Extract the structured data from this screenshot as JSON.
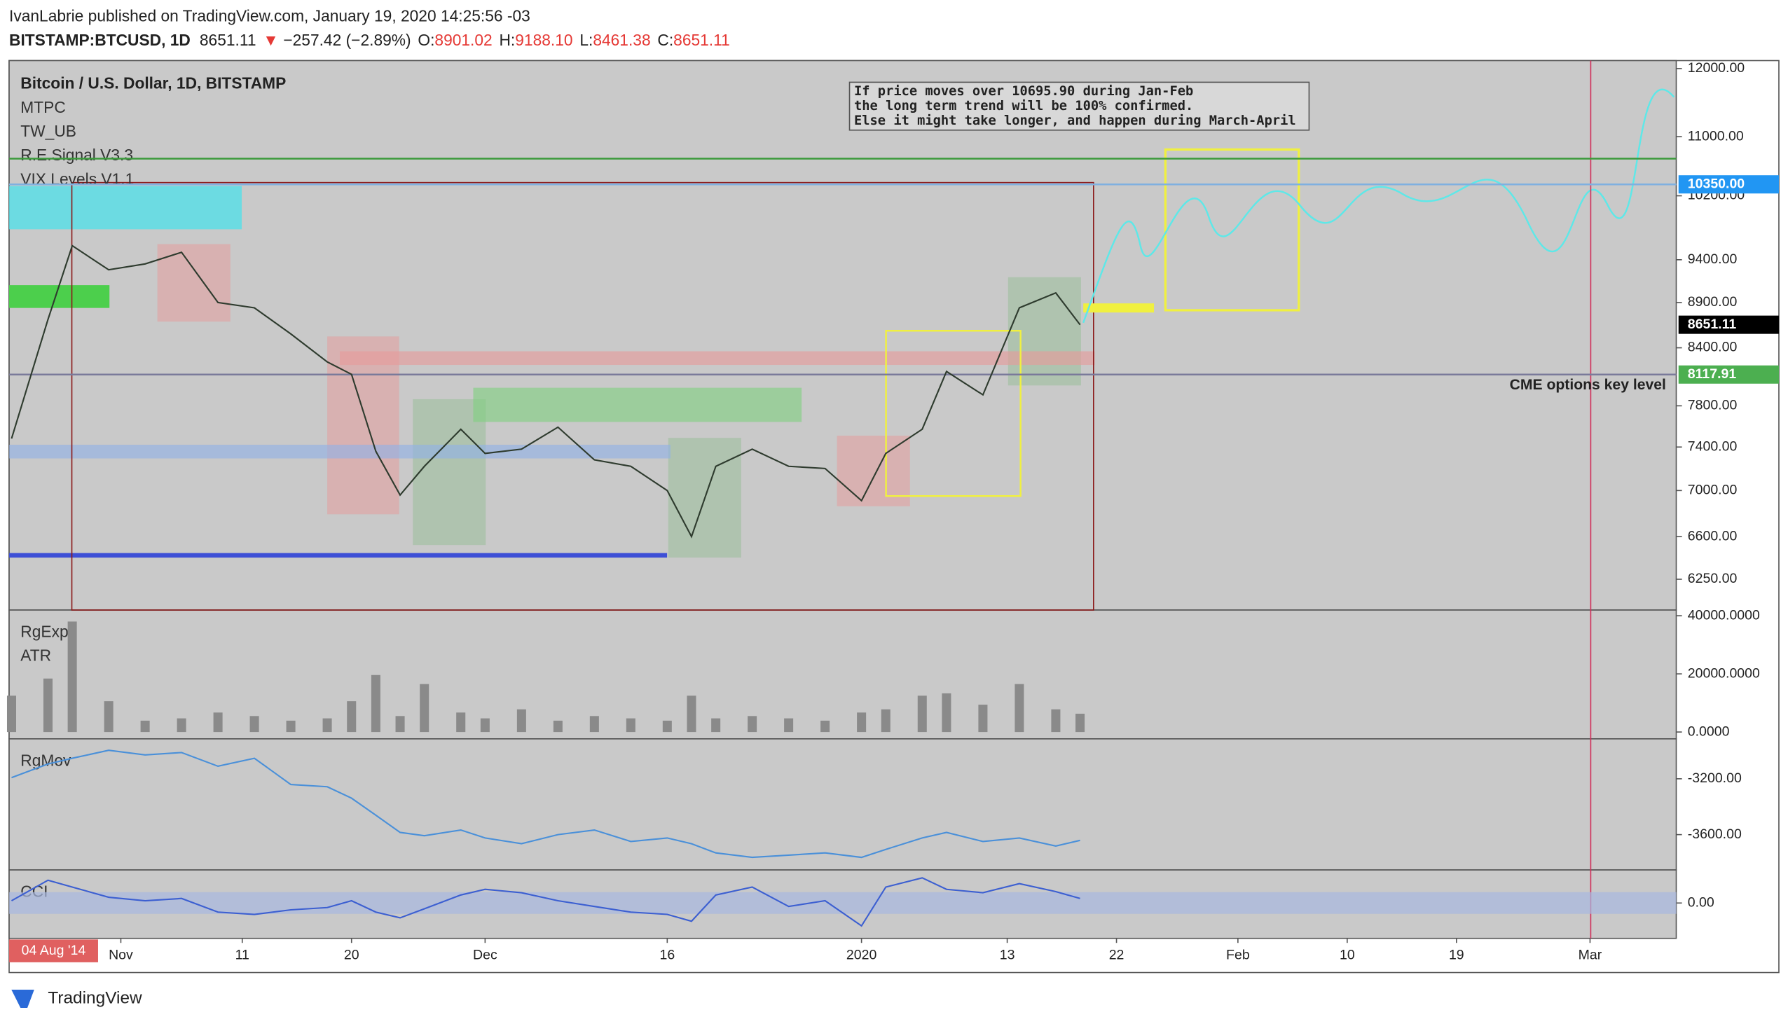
{
  "header": {
    "line1": "IvanLabrie published on TradingView.com, January 19, 2020 14:25:56 -03",
    "symbol": "BITSTAMP:BTCUSD, 1D",
    "last": "8651.11",
    "arrow": "▼",
    "change": "−257.42 (−2.89%)",
    "o_label": "O:",
    "o": "8901.02",
    "h_label": "H:",
    "h": "9188.10",
    "l_label": "L:",
    "l": "8461.38",
    "c_label": "C:",
    "c": "8651.11"
  },
  "chart_data": [
    {
      "type": "line",
      "title": "Bitcoin / U.S. Dollar, 1D, BITSTAMP",
      "indicators": [
        "MTPC",
        "TW_UB",
        "R.E.Signal V3.3",
        "VIX Levels V1.1"
      ],
      "log_scale": true,
      "grid": false,
      "color": "#2e3b2e",
      "x": [
        -9,
        -6,
        -4,
        -1,
        2,
        5,
        8,
        11,
        14,
        17,
        19,
        21,
        23,
        25,
        28,
        30,
        33,
        36,
        39,
        42,
        45,
        47,
        49,
        52,
        55,
        58,
        61,
        63,
        66,
        68,
        71,
        74,
        77,
        79
      ],
      "values": [
        7480,
        8710,
        9570,
        9280,
        9350,
        9490,
        8900,
        8840,
        8550,
        8250,
        8120,
        7360,
        6960,
        7220,
        7570,
        7340,
        7380,
        7590,
        7280,
        7220,
        7000,
        6600,
        7220,
        7380,
        7220,
        7200,
        6910,
        7340,
        7570,
        8150,
        7910,
        8840,
        9010,
        8651.11
      ],
      "ylim": [
        6009,
        12123
      ],
      "yticks": [
        {
          "value": 6250,
          "label": "6250.00"
        },
        {
          "value": 6600,
          "label": "6600.00"
        },
        {
          "value": 7000,
          "label": "7000.00"
        },
        {
          "value": 7400,
          "label": "7400.00"
        },
        {
          "value": 7800,
          "label": "7800.00"
        },
        {
          "value": 8400,
          "label": "8400.00"
        },
        {
          "value": 8900,
          "label": "8900.00"
        },
        {
          "value": 9400,
          "label": "9400.00"
        },
        {
          "value": 10200,
          "label": "10200.00"
        },
        {
          "value": 11000,
          "label": "11000.00"
        },
        {
          "value": 12000,
          "label": "12000.00"
        }
      ],
      "levels": [
        {
          "value": 10695.9,
          "color": "#3a9a3a"
        },
        {
          "value": 10350,
          "color": "#7fb0e0"
        },
        {
          "value": 8117.91,
          "color": "#7a7a9a"
        }
      ],
      "price_labels": [
        {
          "value": 10350,
          "label": "10350.00",
          "bg": "#2196f3"
        },
        {
          "value": 8651.11,
          "label": "8651.11",
          "bg": "#000000"
        },
        {
          "value": 8117.91,
          "label": "8117.91",
          "bg": "#4caf50"
        }
      ],
      "annotation": [
        "If price moves over 10695.90 during Jan-Feb",
        "the long term trend will be 100% confirmed.",
        "Else it might take longer, and happen during March-April"
      ],
      "key_level_label": "CME options key level"
    },
    {
      "type": "bar",
      "labels": [
        "RgExp",
        "ATR"
      ],
      "color": "#8a8a8a",
      "x": [
        -9,
        -6,
        -4,
        -1,
        2,
        5,
        8,
        11,
        14,
        17,
        19,
        21,
        23,
        25,
        28,
        30,
        33,
        36,
        39,
        42,
        45,
        47,
        49,
        52,
        55,
        58,
        61,
        63,
        66,
        68,
        71,
        74,
        77,
        79
      ],
      "values": [
        12500,
        18400,
        38000,
        10600,
        3900,
        4700,
        6700,
        5500,
        3900,
        4700,
        10600,
        19600,
        5500,
        16500,
        6700,
        4700,
        7800,
        3900,
        5500,
        4700,
        3900,
        12500,
        4700,
        5500,
        4700,
        3900,
        6700,
        7800,
        12500,
        13300,
        9400,
        16500,
        7800,
        6300
      ],
      "ylim": [
        -2353,
        41961
      ],
      "yticks": [
        {
          "value": 0,
          "label": "0.0000"
        },
        {
          "value": 20000,
          "label": "20000.0000"
        },
        {
          "value": 40000,
          "label": "40000.0000"
        }
      ]
    },
    {
      "type": "line",
      "labels": [
        "RgMov"
      ],
      "color": "#4a90d9",
      "x": [
        -9,
        -6,
        -4,
        -1,
        2,
        5,
        8,
        11,
        14,
        17,
        19,
        21,
        23,
        25,
        28,
        30,
        33,
        36,
        39,
        42,
        45,
        47,
        49,
        52,
        55,
        58,
        61,
        63,
        66,
        68,
        71,
        74,
        77,
        79
      ],
      "values": [
        -3192,
        -3094,
        -3053,
        -2996,
        -3029,
        -3012,
        -3110,
        -3053,
        -3241,
        -3257,
        -3339,
        -3461,
        -3584,
        -3608,
        -3567,
        -3624,
        -3665,
        -3600,
        -3567,
        -3649,
        -3624,
        -3665,
        -3731,
        -3763,
        -3747,
        -3731,
        -3763,
        -3706,
        -3624,
        -3584,
        -3649,
        -3624,
        -3682,
        -3641
      ],
      "ylim": [
        -3853,
        -2914
      ],
      "yticks": [
        {
          "value": -3600,
          "label": "-3600.00"
        },
        {
          "value": -3200,
          "label": "-3200.00"
        }
      ]
    },
    {
      "type": "line",
      "labels": [
        "CCI"
      ],
      "color": "#3c5fd1",
      "band": [
        -100,
        100
      ],
      "x": [
        -9,
        -6,
        -4,
        -1,
        2,
        5,
        8,
        11,
        14,
        17,
        19,
        21,
        23,
        25,
        28,
        30,
        33,
        36,
        39,
        42,
        45,
        47,
        49,
        52,
        55,
        58,
        61,
        63,
        66,
        68,
        71,
        74,
        77,
        79
      ],
      "values": [
        21,
        210,
        147,
        53,
        21,
        42,
        -84,
        -105,
        -63,
        -42,
        21,
        -84,
        -137,
        -53,
        74,
        126,
        95,
        21,
        -32,
        -84,
        -105,
        -168,
        74,
        147,
        -32,
        21,
        -211,
        147,
        232,
        126,
        95,
        179,
        105,
        42
      ],
      "ylim": [
        -326,
        305
      ],
      "yticks": [
        {
          "value": 0,
          "label": "0.00"
        }
      ],
      "xlim": [
        -9.2,
        128.1
      ],
      "xticks": [
        {
          "value": 0,
          "label": "Nov"
        },
        {
          "value": 10,
          "label": "11"
        },
        {
          "value": 19,
          "label": "20"
        },
        {
          "value": 30,
          "label": "Dec"
        },
        {
          "value": 45,
          "label": "16"
        },
        {
          "value": 61,
          "label": "2020"
        },
        {
          "value": 73,
          "label": "13"
        },
        {
          "value": 82,
          "label": "22"
        },
        {
          "value": 92,
          "label": "Feb"
        },
        {
          "value": 101,
          "label": "10"
        },
        {
          "value": 110,
          "label": "19"
        },
        {
          "value": 121,
          "label": "Mar"
        }
      ]
    }
  ],
  "date_badge": "04 Aug '14",
  "footer": "TradingView"
}
